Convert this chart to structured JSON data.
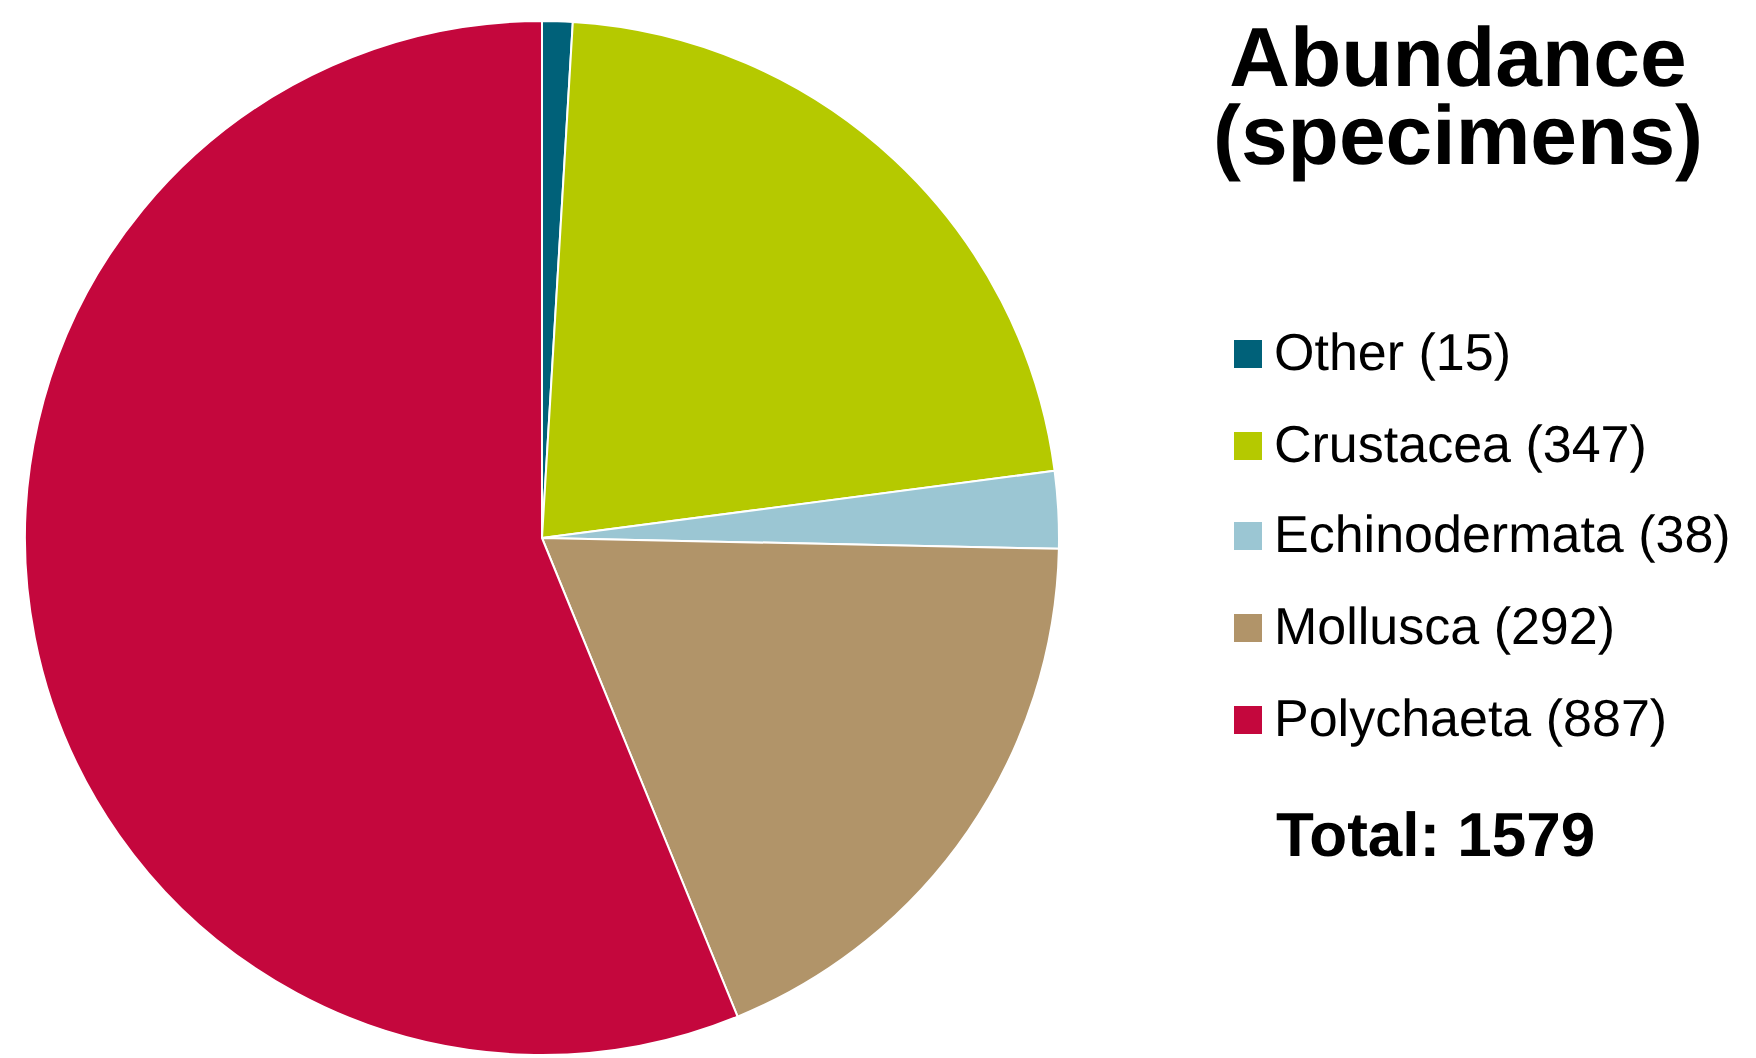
{
  "chart_data": {
    "type": "pie",
    "title": "Abundance (specimens)",
    "categories": [
      "Other (15)",
      "Crustacea (347)",
      "Echinodermata (38)",
      "Mollusca (292)",
      "Polychaeta (887)"
    ],
    "values": [
      15,
      347,
      38,
      292,
      887
    ],
    "colors": [
      "#006179",
      "#b5c900",
      "#9bc6d3",
      "#b19469",
      "#c4073d"
    ],
    "legend": "right",
    "annotations": [
      "Total: 1579"
    ]
  }
}
